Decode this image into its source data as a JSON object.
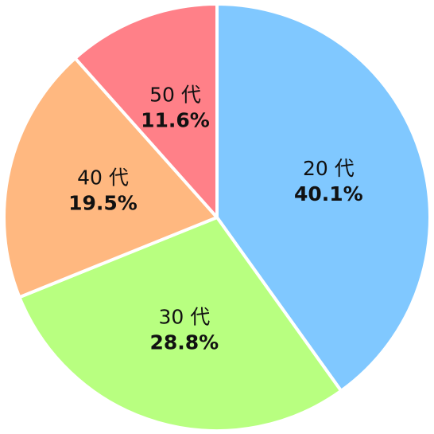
{
  "chart_data": {
    "type": "pie",
    "categories": [
      "20 代",
      "30 代",
      "40 代",
      "50 代"
    ],
    "values": [
      40.1,
      28.8,
      19.5,
      11.6
    ],
    "value_labels": [
      "40.1%",
      "28.8%",
      "19.5%",
      "11.6%"
    ],
    "colors": [
      "#80c8ff",
      "#b8ff80",
      "#ffb880",
      "#ff8088"
    ]
  }
}
